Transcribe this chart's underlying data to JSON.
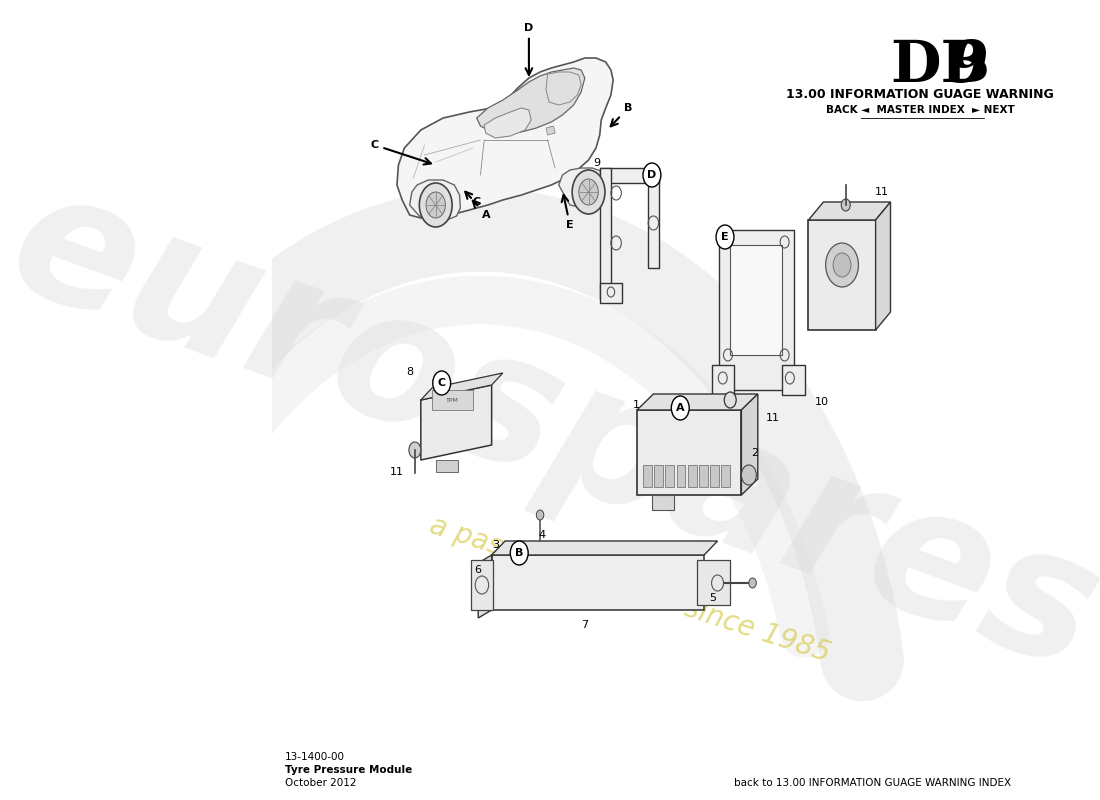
{
  "title_db": "DB",
  "title_9": "9",
  "subtitle": "13.00 INFORMATION GUAGE WARNING",
  "nav": "BACK ◄  MASTER INDEX  ► NEXT",
  "part_number": "13-1400-00",
  "part_name": "Tyre Pressure Module",
  "date": "October 2012",
  "footer": "back to 13.00 INFORMATION GUAGE WARNING INDEX",
  "bg_color": "#ffffff",
  "wm_color": "#c0c0c0",
  "wm_subcolor": "#d8cc50"
}
